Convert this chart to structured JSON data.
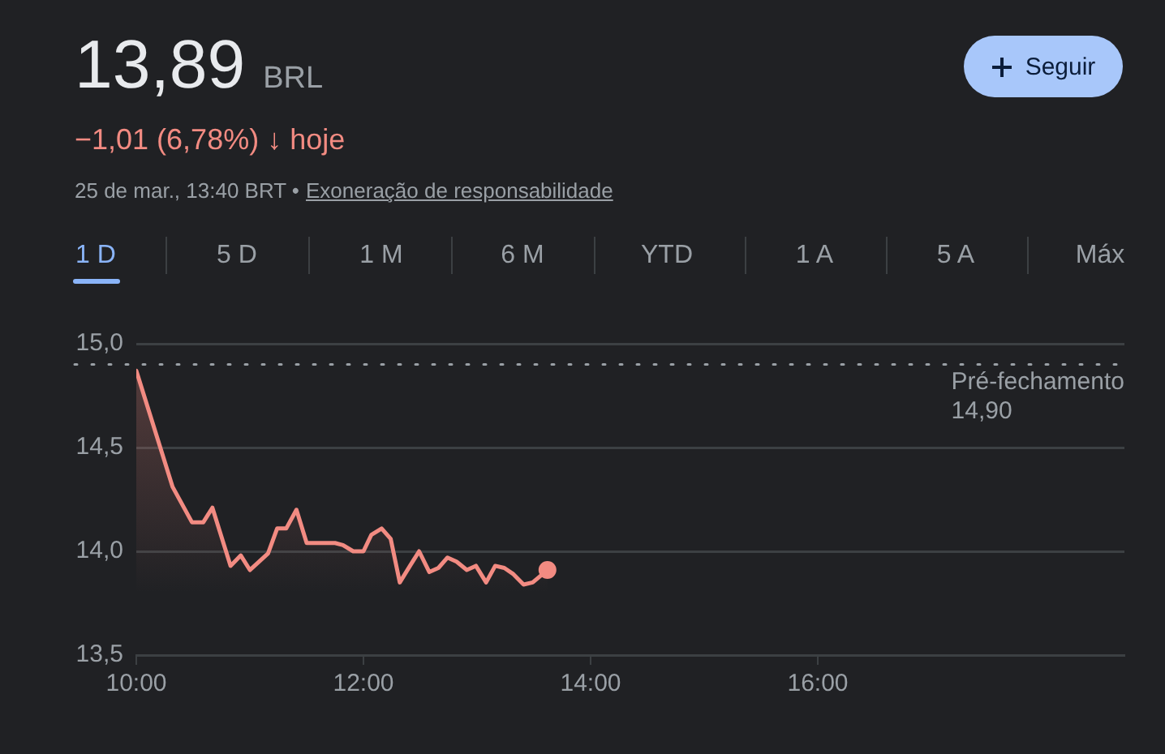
{
  "chart_data": {
    "type": "area",
    "title": "13,89",
    "subtitle": "−1,01 (6,78%) ↓ hoje",
    "annotations": [
      "BRL",
      "25 de mar., 13:40 BRT •",
      "Exoneração de responsabilidade",
      "Seguir",
      "1 D",
      "5 D",
      "1 M",
      "6 M",
      "YTD",
      "1 A",
      "5 A",
      "Máx"
    ],
    "xlim": [
      10,
      18.7
    ],
    "xticks": [
      {
        "value": 10,
        "label": "10:00"
      },
      {
        "value": 12,
        "label": "12:00"
      },
      {
        "value": 14,
        "label": "14:00"
      },
      {
        "value": 16,
        "label": "16:00"
      }
    ],
    "ylim": [
      13.5,
      15.0
    ],
    "yticks": [
      {
        "value": 13.5,
        "label": "13,5"
      },
      {
        "value": 14,
        "label": "14,0"
      },
      {
        "value": 14.5,
        "label": "14,5"
      },
      {
        "value": 15,
        "label": "15,0"
      }
    ],
    "grid": "y",
    "ref_lines": [
      {
        "axis": "y",
        "value": 14.9,
        "label": "Pré-fechamento\n14,90",
        "color": "#9aa0a6",
        "line_style": "dotted"
      }
    ],
    "series": [
      {
        "color": "#f28b82",
        "marker": "none",
        "x": [
          10.0,
          10.32,
          10.49,
          10.59,
          10.67,
          10.83,
          10.92,
          11.0,
          11.16,
          11.24,
          11.32,
          11.41,
          11.5,
          11.75,
          11.82,
          11.91,
          12.0,
          12.07,
          12.16,
          12.24,
          12.32,
          12.41,
          12.49,
          12.58,
          12.66,
          12.74,
          12.82,
          12.91,
          12.99,
          13.08,
          13.16,
          13.24,
          13.32,
          13.41,
          13.49,
          13.62
        ],
        "values": [
          14.87,
          14.31,
          14.14,
          14.14,
          14.21,
          13.93,
          13.98,
          13.91,
          13.99,
          14.11,
          14.11,
          14.2,
          14.04,
          14.04,
          14.03,
          14.0,
          14.0,
          14.08,
          14.11,
          14.06,
          13.85,
          13.93,
          14.0,
          13.9,
          13.92,
          13.97,
          13.95,
          13.91,
          13.93,
          13.85,
          13.93,
          13.92,
          13.89,
          13.84,
          13.85,
          13.91
        ]
      },
      {
        "type": "scatter",
        "color": "#f28b82",
        "marker": "circle",
        "x": [
          13.62
        ],
        "values": [
          13.91
        ]
      }
    ]
  }
}
